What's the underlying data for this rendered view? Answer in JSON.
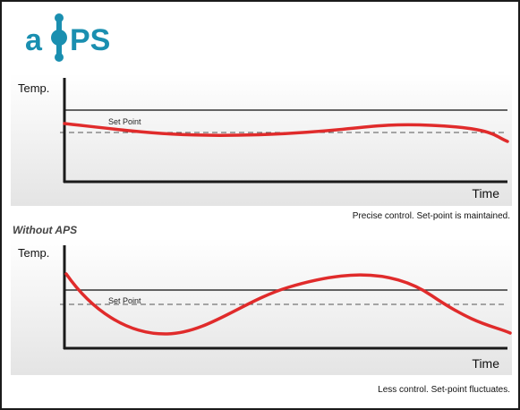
{
  "logo": {
    "text": "aPS"
  },
  "charts": {
    "with_aps": {
      "ylabel": "Temp.",
      "xlabel": "Time",
      "set_point_label": "Set Point",
      "caption": "Precise control. Set-point is maintained."
    },
    "without_aps": {
      "title": "Without APS",
      "ylabel": "Temp.",
      "xlabel": "Time",
      "set_point_label": "Set Point",
      "caption": "Less control. Set-point fluctuates."
    }
  },
  "colors": {
    "curve": "#e02b2b",
    "axis": "#1a1a1a",
    "logo": "#1a8fb0"
  }
}
